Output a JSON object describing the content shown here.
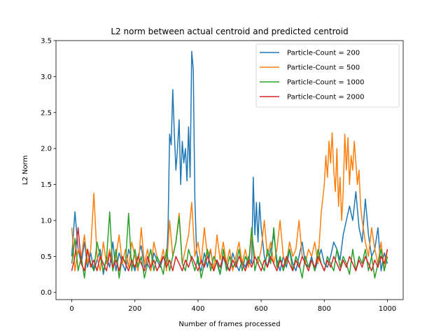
{
  "chart_data": {
    "type": "line",
    "title": "L2 norm between actual centroid and predicted centroid",
    "xlabel": "Number of frames processed",
    "ylabel": "L2 Norm",
    "xlim": [
      -50,
      1050
    ],
    "ylim": [
      -0.1,
      3.5
    ],
    "xticks": [
      0,
      200,
      400,
      600,
      800,
      1000
    ],
    "yticks": [
      0.0,
      0.5,
      1.0,
      1.5,
      2.0,
      2.5,
      3.0,
      3.5
    ],
    "xtick_labels": [
      "0",
      "200",
      "400",
      "600",
      "800",
      "1000"
    ],
    "ytick_labels": [
      "0.0",
      "0.5",
      "1.0",
      "1.5",
      "2.0",
      "2.5",
      "3.0",
      "3.5"
    ],
    "grid": false,
    "legend_position": "top-right",
    "series": [
      {
        "name": "Particle-Count = 200",
        "color": "#1f77b4",
        "x": [
          0,
          10,
          20,
          30,
          40,
          50,
          60,
          70,
          80,
          90,
          100,
          110,
          120,
          130,
          140,
          150,
          160,
          170,
          180,
          190,
          200,
          210,
          220,
          230,
          240,
          250,
          260,
          270,
          280,
          290,
          300,
          305,
          310,
          315,
          320,
          325,
          330,
          335,
          340,
          345,
          350,
          355,
          360,
          365,
          370,
          375,
          380,
          385,
          390,
          395,
          400,
          410,
          420,
          430,
          440,
          450,
          460,
          470,
          480,
          490,
          500,
          510,
          520,
          530,
          540,
          550,
          560,
          570,
          575,
          580,
          585,
          590,
          595,
          600,
          610,
          620,
          630,
          640,
          650,
          660,
          670,
          680,
          690,
          700,
          710,
          720,
          730,
          740,
          750,
          760,
          770,
          780,
          790,
          800,
          810,
          820,
          830,
          840,
          850,
          860,
          870,
          880,
          890,
          900,
          910,
          920,
          930,
          940,
          950,
          960,
          970,
          980,
          990,
          1000
        ],
        "values": [
          0.5,
          1.12,
          0.6,
          0.4,
          0.7,
          0.35,
          0.55,
          0.3,
          0.45,
          0.6,
          0.25,
          0.5,
          0.35,
          0.7,
          0.3,
          0.55,
          0.4,
          0.3,
          0.6,
          0.45,
          0.3,
          0.5,
          0.65,
          0.35,
          0.4,
          0.3,
          0.55,
          0.45,
          0.35,
          0.5,
          0.4,
          0.9,
          2.2,
          2.05,
          2.82,
          2.2,
          1.7,
          2.0,
          2.4,
          1.5,
          2.1,
          1.8,
          2.0,
          1.55,
          2.3,
          1.6,
          3.35,
          3.1,
          1.3,
          0.6,
          0.4,
          0.3,
          0.55,
          0.35,
          0.6,
          0.3,
          0.45,
          0.25,
          0.5,
          0.35,
          0.3,
          0.55,
          0.4,
          0.3,
          0.45,
          0.35,
          0.5,
          0.4,
          1.6,
          0.8,
          1.25,
          0.7,
          1.25,
          0.9,
          0.5,
          0.35,
          0.6,
          0.8,
          0.45,
          0.3,
          0.5,
          0.35,
          0.6,
          0.4,
          0.3,
          0.5,
          0.7,
          0.4,
          0.35,
          0.5,
          0.3,
          0.45,
          0.6,
          0.4,
          0.35,
          0.5,
          0.7,
          0.6,
          0.45,
          0.8,
          1.0,
          1.2,
          1.0,
          1.4,
          0.9,
          0.7,
          1.3,
          0.8,
          0.5,
          0.6,
          0.9,
          0.3,
          0.55,
          0.4
        ]
      },
      {
        "name": "Particle-Count = 500",
        "color": "#ff7f0e",
        "x": [
          0,
          10,
          20,
          30,
          40,
          50,
          60,
          70,
          80,
          90,
          100,
          110,
          120,
          130,
          140,
          150,
          160,
          170,
          180,
          190,
          200,
          210,
          220,
          230,
          240,
          250,
          260,
          270,
          280,
          290,
          300,
          310,
          320,
          330,
          340,
          350,
          360,
          370,
          380,
          390,
          400,
          410,
          420,
          430,
          440,
          450,
          460,
          470,
          480,
          490,
          500,
          510,
          520,
          530,
          540,
          550,
          560,
          570,
          580,
          590,
          600,
          610,
          620,
          630,
          640,
          650,
          660,
          670,
          680,
          690,
          700,
          710,
          720,
          730,
          740,
          750,
          760,
          770,
          780,
          790,
          800,
          805,
          810,
          815,
          820,
          825,
          830,
          835,
          840,
          845,
          850,
          855,
          860,
          865,
          870,
          875,
          880,
          885,
          890,
          895,
          900,
          905,
          910,
          915,
          920,
          930,
          940,
          950,
          960,
          970,
          980,
          990,
          1000
        ],
        "values": [
          0.9,
          0.3,
          0.6,
          0.5,
          0.8,
          0.4,
          0.6,
          1.38,
          0.5,
          0.3,
          0.7,
          0.4,
          0.6,
          0.3,
          0.5,
          0.8,
          0.4,
          0.6,
          0.35,
          0.7,
          0.5,
          0.3,
          0.9,
          0.4,
          0.6,
          0.3,
          0.7,
          0.5,
          0.4,
          0.6,
          0.3,
          1.0,
          0.5,
          0.7,
          1.1,
          0.4,
          0.6,
          0.8,
          1.25,
          0.5,
          0.7,
          0.4,
          0.9,
          0.5,
          0.6,
          0.3,
          0.8,
          0.45,
          0.7,
          0.4,
          0.6,
          0.3,
          0.5,
          0.7,
          0.4,
          0.6,
          0.35,
          0.8,
          0.5,
          0.4,
          0.6,
          1.0,
          0.5,
          0.7,
          0.4,
          0.6,
          1.0,
          0.5,
          0.4,
          0.7,
          0.5,
          0.6,
          1.0,
          0.5,
          0.4,
          0.6,
          0.5,
          0.7,
          0.4,
          1.1,
          1.5,
          1.9,
          1.6,
          2.1,
          1.8,
          2.22,
          1.7,
          1.4,
          2.0,
          1.2,
          1.6,
          1.0,
          1.4,
          2.2,
          1.7,
          2.15,
          1.5,
          1.9,
          1.7,
          2.1,
          1.8,
          1.5,
          1.7,
          1.2,
          1.0,
          0.7,
          0.5,
          0.9,
          0.6,
          0.4,
          0.7,
          0.3,
          0.6
        ]
      },
      {
        "name": "Particle-Count = 1000",
        "color": "#2ca02c",
        "x": [
          0,
          10,
          20,
          30,
          40,
          50,
          60,
          70,
          80,
          90,
          100,
          110,
          120,
          130,
          140,
          150,
          160,
          170,
          180,
          190,
          200,
          210,
          220,
          230,
          240,
          250,
          260,
          270,
          280,
          290,
          300,
          310,
          320,
          330,
          340,
          350,
          360,
          370,
          380,
          390,
          400,
          410,
          420,
          430,
          440,
          450,
          460,
          470,
          480,
          490,
          500,
          510,
          520,
          530,
          540,
          550,
          560,
          570,
          580,
          590,
          600,
          610,
          620,
          630,
          640,
          650,
          660,
          670,
          680,
          690,
          700,
          710,
          720,
          730,
          740,
          750,
          760,
          770,
          780,
          790,
          800,
          810,
          820,
          830,
          840,
          850,
          860,
          870,
          880,
          890,
          900,
          910,
          920,
          930,
          940,
          950,
          960,
          970,
          980,
          990,
          1000
        ],
        "values": [
          0.4,
          0.75,
          0.3,
          0.5,
          0.2,
          0.6,
          0.4,
          0.3,
          0.7,
          0.5,
          0.3,
          0.45,
          1.12,
          0.3,
          0.6,
          0.2,
          0.5,
          0.4,
          1.1,
          0.3,
          0.6,
          0.35,
          0.5,
          0.2,
          0.4,
          0.6,
          0.3,
          0.5,
          0.4,
          0.25,
          0.6,
          0.3,
          0.5,
          0.7,
          1.05,
          0.4,
          0.3,
          0.6,
          0.45,
          0.3,
          0.5,
          0.2,
          0.4,
          0.6,
          0.3,
          0.5,
          0.4,
          0.25,
          0.6,
          0.3,
          0.5,
          0.35,
          0.4,
          0.6,
          0.3,
          0.5,
          0.4,
          0.9,
          0.3,
          0.5,
          0.4,
          0.3,
          0.6,
          0.4,
          0.9,
          0.35,
          0.5,
          0.3,
          0.45,
          0.6,
          0.3,
          0.5,
          0.4,
          0.2,
          0.5,
          0.35,
          0.45,
          0.3,
          0.6,
          0.4,
          0.3,
          0.5,
          0.4,
          0.3,
          0.6,
          0.35,
          0.5,
          0.4,
          0.25,
          0.6,
          0.3,
          0.5,
          0.4,
          0.6,
          0.3,
          0.5,
          0.2,
          0.4,
          0.6,
          0.3,
          0.5
        ]
      },
      {
        "name": "Particle-Count = 2000",
        "color": "#d62728",
        "x": [
          0,
          10,
          20,
          30,
          40,
          50,
          60,
          70,
          80,
          90,
          100,
          110,
          120,
          130,
          140,
          150,
          160,
          170,
          180,
          190,
          200,
          210,
          220,
          230,
          240,
          250,
          260,
          270,
          280,
          290,
          300,
          310,
          320,
          330,
          340,
          350,
          360,
          370,
          380,
          390,
          400,
          410,
          420,
          430,
          440,
          450,
          460,
          470,
          480,
          490,
          500,
          510,
          520,
          530,
          540,
          550,
          560,
          570,
          580,
          590,
          600,
          610,
          620,
          630,
          640,
          650,
          660,
          670,
          680,
          690,
          700,
          710,
          720,
          730,
          740,
          750,
          760,
          770,
          780,
          790,
          800,
          810,
          820,
          830,
          840,
          850,
          860,
          870,
          880,
          890,
          900,
          910,
          920,
          930,
          940,
          950,
          960,
          970,
          980,
          990,
          1000
        ],
        "values": [
          0.3,
          0.5,
          0.9,
          0.4,
          0.3,
          0.6,
          0.35,
          0.45,
          0.3,
          0.5,
          0.4,
          0.3,
          0.55,
          0.35,
          0.45,
          0.3,
          0.5,
          0.4,
          0.3,
          0.45,
          0.35,
          0.5,
          0.4,
          0.3,
          0.5,
          0.35,
          0.45,
          0.3,
          0.4,
          0.5,
          0.35,
          0.45,
          0.3,
          0.5,
          0.4,
          0.3,
          0.45,
          0.35,
          0.5,
          0.4,
          0.3,
          0.45,
          0.35,
          0.5,
          0.4,
          0.3,
          0.45,
          0.35,
          0.5,
          0.4,
          0.3,
          0.45,
          0.35,
          0.5,
          0.4,
          0.3,
          0.45,
          0.35,
          0.5,
          0.4,
          0.3,
          0.45,
          0.35,
          0.5,
          0.4,
          0.3,
          0.45,
          0.35,
          0.5,
          0.4,
          0.3,
          0.45,
          0.35,
          0.5,
          0.4,
          0.3,
          0.45,
          0.35,
          0.5,
          0.4,
          0.3,
          0.45,
          0.35,
          0.5,
          0.4,
          0.3,
          0.45,
          0.35,
          0.5,
          0.4,
          0.3,
          0.45,
          0.35,
          0.5,
          0.4,
          0.3,
          0.45,
          0.35,
          0.5,
          0.4,
          0.6
        ]
      }
    ]
  }
}
